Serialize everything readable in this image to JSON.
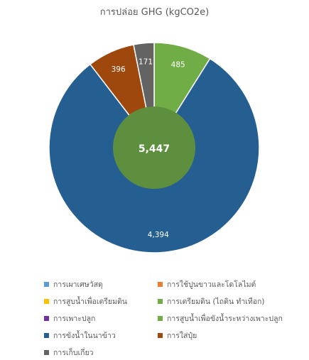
{
  "chart_data": {
    "type": "pie",
    "title": "การปล่อย GHG (kgCO2e)",
    "center_label": "5,447",
    "legend_position": "bottom",
    "categories": [
      "การเผาเศษวัสดุ",
      "การใช้ปูนขาวและโดโลไมต์",
      "การสูบน้ำเพื่อเตรียมดิน",
      "การเตรียมดิน (ไถดิน ทำเทือก)",
      "การเพาะปลูก",
      "การสูบน้ำเพื่อขังน้ำระหว่างเพาะปลูก",
      "การขังน้ำในนาข้าว",
      "การใส่ปุ๋ย",
      "การเก็บเกี่ยว"
    ],
    "colors": [
      "#5b9bd5",
      "#ed7d31",
      "#ffc000",
      "#70ad47",
      "#7030a0",
      "#70ad47",
      "#255e91",
      "#9e480e",
      "#636363"
    ],
    "slices": [
      {
        "label": "การเตรียมดิน (ไถดิน ทำเทือก)",
        "value": 485,
        "value_label": "485",
        "color": "#70ad47"
      },
      {
        "label": "การขังน้ำในนาข้าว",
        "value": 4394,
        "value_label": "4,394",
        "color": "#255e91"
      },
      {
        "label": "การใส่ปุ๋ย",
        "value": 396,
        "value_label": "396",
        "color": "#9e480e"
      },
      {
        "label": "การเก็บเกี่ยว",
        "value": 171,
        "value_label": "171",
        "color": "#636363"
      }
    ],
    "center_color": "#5e8f3e",
    "grid": false
  }
}
